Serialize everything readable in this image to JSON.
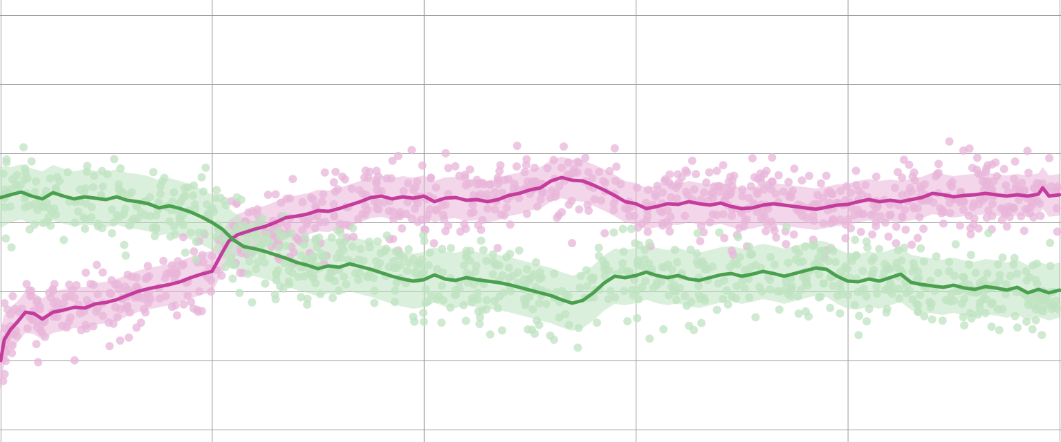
{
  "chart_data": {
    "type": "line",
    "title": "",
    "xlabel": "",
    "ylabel": "",
    "grid": true,
    "legend": "none",
    "xlim": [
      0,
      5
    ],
    "ylim": [
      0,
      6.2
    ],
    "x_gridlines": [
      0,
      1,
      2,
      3,
      4,
      5
    ],
    "y_gridlines": [
      0.2,
      1.2,
      2.2,
      3.2,
      4.2,
      5.2,
      6.2
    ],
    "series": [
      {
        "color": "#c43c9c",
        "band_color": "#e9b4d9",
        "scatter_color": "#e8b5da",
        "x": [
          0.0,
          0.02,
          0.05,
          0.08,
          0.12,
          0.16,
          0.2,
          0.25,
          0.3,
          0.35,
          0.4,
          0.45,
          0.5,
          0.55,
          0.6,
          0.65,
          0.7,
          0.75,
          0.8,
          0.85,
          0.9,
          0.95,
          1.0,
          1.02,
          1.05,
          1.08,
          1.12,
          1.16,
          1.2,
          1.25,
          1.3,
          1.35,
          1.4,
          1.45,
          1.5,
          1.55,
          1.6,
          1.65,
          1.7,
          1.75,
          1.8,
          1.85,
          1.9,
          1.95,
          2.0,
          2.05,
          2.1,
          2.15,
          2.2,
          2.25,
          2.3,
          2.35,
          2.4,
          2.45,
          2.5,
          2.55,
          2.6,
          2.65,
          2.7,
          2.75,
          2.8,
          2.85,
          2.9,
          2.95,
          3.0,
          3.05,
          3.1,
          3.15,
          3.2,
          3.25,
          3.3,
          3.35,
          3.4,
          3.45,
          3.5,
          3.55,
          3.6,
          3.65,
          3.7,
          3.75,
          3.8,
          3.85,
          3.9,
          3.95,
          4.0,
          4.05,
          4.1,
          4.15,
          4.2,
          4.25,
          4.3,
          4.35,
          4.4,
          4.45,
          4.5,
          4.55,
          4.6,
          4.65,
          4.7,
          4.75,
          4.8,
          4.85,
          4.9,
          4.92,
          4.95,
          5.0
        ],
        "values": [
          1.2,
          1.5,
          1.65,
          1.75,
          1.9,
          1.88,
          1.8,
          1.9,
          1.93,
          1.97,
          1.96,
          2.02,
          2.04,
          2.08,
          2.14,
          2.2,
          2.24,
          2.27,
          2.3,
          2.34,
          2.4,
          2.45,
          2.49,
          2.6,
          2.77,
          2.93,
          3.02,
          3.06,
          3.1,
          3.14,
          3.2,
          3.27,
          3.29,
          3.32,
          3.37,
          3.36,
          3.4,
          3.45,
          3.5,
          3.56,
          3.58,
          3.54,
          3.57,
          3.55,
          3.58,
          3.5,
          3.55,
          3.56,
          3.52,
          3.53,
          3.5,
          3.53,
          3.59,
          3.62,
          3.67,
          3.7,
          3.8,
          3.85,
          3.81,
          3.8,
          3.74,
          3.67,
          3.59,
          3.5,
          3.47,
          3.4,
          3.43,
          3.47,
          3.46,
          3.5,
          3.47,
          3.45,
          3.48,
          3.43,
          3.4,
          3.41,
          3.45,
          3.47,
          3.45,
          3.43,
          3.41,
          3.39,
          3.42,
          3.45,
          3.46,
          3.5,
          3.53,
          3.5,
          3.52,
          3.5,
          3.53,
          3.56,
          3.62,
          3.6,
          3.57,
          3.59,
          3.6,
          3.62,
          3.6,
          3.58,
          3.6,
          3.58,
          3.61,
          3.7,
          3.58,
          3.6
        ],
        "band": [
          0.42,
          0.36,
          0.32,
          0.3,
          0.3,
          0.3,
          0.3,
          0.3,
          0.3,
          0.3,
          0.3,
          0.3,
          0.3,
          0.3,
          0.3,
          0.3,
          0.3,
          0.3,
          0.3,
          0.3,
          0.3,
          0.3,
          0.3,
          0.3,
          0.3,
          0.3,
          0.3,
          0.3,
          0.3,
          0.3,
          0.3,
          0.3,
          0.3,
          0.3,
          0.3,
          0.3,
          0.3,
          0.3,
          0.3,
          0.3,
          0.3,
          0.3,
          0.3,
          0.3,
          0.3,
          0.3,
          0.3,
          0.3,
          0.3,
          0.3,
          0.3,
          0.3,
          0.3,
          0.3,
          0.3,
          0.3,
          0.3,
          0.3,
          0.3,
          0.3,
          0.3,
          0.3,
          0.3,
          0.3,
          0.3,
          0.3,
          0.3,
          0.3,
          0.3,
          0.3,
          0.3,
          0.3,
          0.3,
          0.3,
          0.3,
          0.3,
          0.3,
          0.3,
          0.3,
          0.3,
          0.3,
          0.3,
          0.3,
          0.3,
          0.3,
          0.3,
          0.3,
          0.3,
          0.3,
          0.3,
          0.3,
          0.3,
          0.3,
          0.3,
          0.3,
          0.3,
          0.3,
          0.3,
          0.3,
          0.3,
          0.3,
          0.3,
          0.3,
          0.3,
          0.3,
          0.3
        ]
      },
      {
        "color": "#4aa04f",
        "band_color": "#bde3c0",
        "scatter_color": "#bfe3c2",
        "x": [
          0.0,
          0.05,
          0.1,
          0.15,
          0.2,
          0.25,
          0.3,
          0.35,
          0.4,
          0.45,
          0.5,
          0.55,
          0.6,
          0.65,
          0.7,
          0.75,
          0.8,
          0.85,
          0.9,
          0.95,
          1.0,
          1.05,
          1.1,
          1.15,
          1.2,
          1.25,
          1.3,
          1.35,
          1.4,
          1.45,
          1.5,
          1.55,
          1.6,
          1.65,
          1.7,
          1.75,
          1.8,
          1.85,
          1.9,
          1.95,
          2.0,
          2.05,
          2.1,
          2.15,
          2.2,
          2.25,
          2.3,
          2.35,
          2.4,
          2.45,
          2.5,
          2.55,
          2.6,
          2.65,
          2.7,
          2.75,
          2.8,
          2.85,
          2.9,
          2.95,
          3.0,
          3.05,
          3.1,
          3.15,
          3.2,
          3.25,
          3.3,
          3.35,
          3.4,
          3.45,
          3.5,
          3.55,
          3.6,
          3.65,
          3.7,
          3.75,
          3.8,
          3.85,
          3.9,
          3.95,
          4.0,
          4.05,
          4.1,
          4.15,
          4.2,
          4.25,
          4.3,
          4.35,
          4.4,
          4.45,
          4.5,
          4.55,
          4.6,
          4.65,
          4.7,
          4.75,
          4.8,
          4.85,
          4.9,
          4.95,
          5.0
        ],
        "values": [
          3.56,
          3.6,
          3.64,
          3.58,
          3.54,
          3.63,
          3.58,
          3.54,
          3.57,
          3.55,
          3.53,
          3.57,
          3.52,
          3.5,
          3.47,
          3.41,
          3.44,
          3.4,
          3.35,
          3.28,
          3.2,
          3.1,
          2.95,
          2.85,
          2.82,
          2.78,
          2.73,
          2.68,
          2.62,
          2.58,
          2.53,
          2.57,
          2.55,
          2.6,
          2.56,
          2.52,
          2.47,
          2.42,
          2.38,
          2.35,
          2.37,
          2.44,
          2.38,
          2.36,
          2.4,
          2.37,
          2.35,
          2.33,
          2.3,
          2.26,
          2.22,
          2.18,
          2.14,
          2.08,
          2.03,
          2.07,
          2.18,
          2.32,
          2.42,
          2.4,
          2.43,
          2.48,
          2.43,
          2.4,
          2.43,
          2.38,
          2.36,
          2.4,
          2.44,
          2.46,
          2.42,
          2.45,
          2.49,
          2.46,
          2.42,
          2.46,
          2.5,
          2.54,
          2.52,
          2.42,
          2.35,
          2.34,
          2.38,
          2.35,
          2.4,
          2.45,
          2.33,
          2.3,
          2.28,
          2.26,
          2.29,
          2.25,
          2.23,
          2.27,
          2.25,
          2.22,
          2.26,
          2.18,
          2.23,
          2.18,
          2.22
        ],
        "band": [
          0.45,
          0.4,
          0.4,
          0.4,
          0.4,
          0.4,
          0.4,
          0.4,
          0.4,
          0.4,
          0.4,
          0.4,
          0.4,
          0.4,
          0.4,
          0.4,
          0.4,
          0.4,
          0.4,
          0.4,
          0.4,
          0.4,
          0.4,
          0.4,
          0.4,
          0.4,
          0.4,
          0.4,
          0.4,
          0.4,
          0.4,
          0.4,
          0.4,
          0.4,
          0.4,
          0.4,
          0.4,
          0.4,
          0.4,
          0.4,
          0.4,
          0.4,
          0.4,
          0.4,
          0.4,
          0.4,
          0.4,
          0.4,
          0.4,
          0.4,
          0.4,
          0.4,
          0.4,
          0.4,
          0.4,
          0.4,
          0.4,
          0.4,
          0.4,
          0.4,
          0.4,
          0.4,
          0.4,
          0.4,
          0.4,
          0.4,
          0.4,
          0.4,
          0.4,
          0.4,
          0.4,
          0.4,
          0.4,
          0.4,
          0.4,
          0.4,
          0.4,
          0.4,
          0.4,
          0.4,
          0.4,
          0.4,
          0.4,
          0.4,
          0.4,
          0.4,
          0.4,
          0.4,
          0.4,
          0.4,
          0.4,
          0.4,
          0.4,
          0.4,
          0.4,
          0.4,
          0.4,
          0.4,
          0.4,
          0.4,
          0.4
        ]
      }
    ]
  }
}
